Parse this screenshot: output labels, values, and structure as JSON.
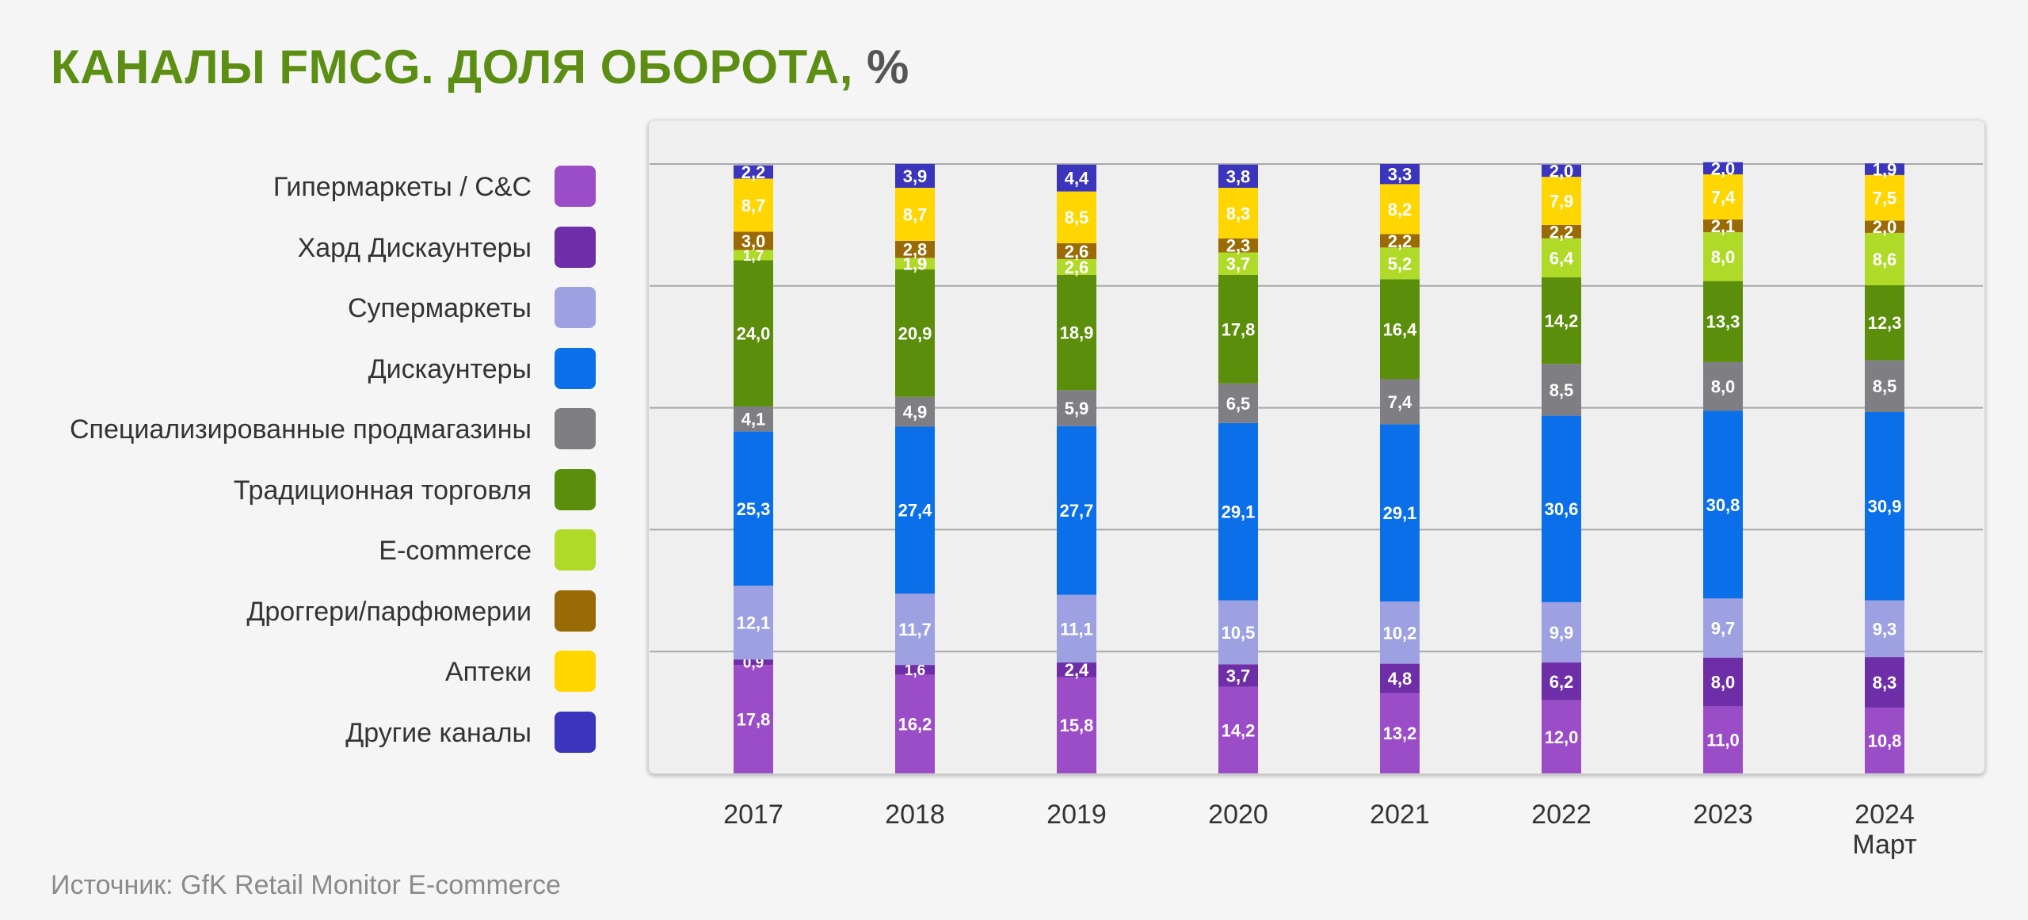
{
  "title": {
    "main": "КАНАЛЫ FMCG. ДОЛЯ ОБОРОТА,",
    "unit": "%"
  },
  "source": "Источник: GfK Retail Monitor E-commerce",
  "legend": [
    {
      "label": "Гипермаркеты / C&C",
      "color": "#9b4dc7"
    },
    {
      "label": "Хард Дискаунтеры",
      "color": "#6e2ea8"
    },
    {
      "label": "Супермаркеты",
      "color": "#9da1e1"
    },
    {
      "label": "Дискаунтеры",
      "color": "#0a6fe8"
    },
    {
      "label": "Специализированные продмагазины",
      "color": "#7f7f83"
    },
    {
      "label": "Традиционная торговля",
      "color": "#5b8e0a"
    },
    {
      "label": "E-commerce",
      "color": "#b0da28"
    },
    {
      "label": "Дроггери/парфюмерии",
      "color": "#9a6b05"
    },
    {
      "label": "Аптеки",
      "color": "#ffd600"
    },
    {
      "label": "Другие каналы",
      "color": "#3a35bc"
    }
  ],
  "chart_data": {
    "type": "bar",
    "stacked": true,
    "categories": [
      "2017",
      "2018",
      "2019",
      "2020",
      "2021",
      "2022",
      "2023",
      "2024\nМарт"
    ],
    "ylim": [
      0,
      100
    ],
    "grid": true,
    "legend_position": "left",
    "series": [
      {
        "name": "Гипермаркеты / C&C",
        "color": "#9b4dc7",
        "values": [
          17.8,
          16.2,
          15.8,
          14.2,
          13.2,
          12.0,
          11.0,
          10.8
        ],
        "labels": [
          "17,8",
          "16,2",
          "15,8",
          "14,2",
          "13,2",
          "12,0",
          "11,0",
          "10,8"
        ]
      },
      {
        "name": "Хард Дискаунтеры",
        "color": "#6e2ea8",
        "values": [
          0.9,
          1.6,
          2.4,
          3.7,
          4.8,
          6.2,
          8.0,
          8.3
        ],
        "labels": [
          "0,9",
          "1,6",
          "2,4",
          "3,7",
          "4,8",
          "6,2",
          "8,0",
          "8,3"
        ]
      },
      {
        "name": "Супермаркеты",
        "color": "#9da1e1",
        "values": [
          12.1,
          11.7,
          11.1,
          10.5,
          10.2,
          9.9,
          9.7,
          9.3
        ],
        "labels": [
          "12,1",
          "11,7",
          "11,1",
          "10,5",
          "10,2",
          "9,9",
          "9,7",
          "9,3"
        ]
      },
      {
        "name": "Дискаунтеры",
        "color": "#0a6fe8",
        "values": [
          25.3,
          27.4,
          27.7,
          29.1,
          29.1,
          30.6,
          30.8,
          30.9
        ],
        "labels": [
          "25,3",
          "27,4",
          "27,7",
          "29,1",
          "29,1",
          "30,6",
          "30,8",
          "30,9"
        ]
      },
      {
        "name": "Специализированные продмагазины",
        "color": "#7f7f83",
        "values": [
          4.1,
          4.9,
          5.9,
          6.5,
          7.4,
          8.5,
          8.0,
          8.5
        ],
        "labels": [
          "4,1",
          "4,9",
          "5,9",
          "6,5",
          "7,4",
          "8,5",
          "8,0",
          "8,5"
        ]
      },
      {
        "name": "Традиционная торговля",
        "color": "#5b8e0a",
        "values": [
          24.0,
          20.9,
          18.9,
          17.8,
          16.4,
          14.2,
          13.3,
          12.3
        ],
        "labels": [
          "24,0",
          "20,9",
          "18,9",
          "17,8",
          "16,4",
          "14,2",
          "13,3",
          "12,3"
        ]
      },
      {
        "name": "E-commerce",
        "color": "#b0da28",
        "values": [
          1.7,
          1.9,
          2.6,
          3.7,
          5.2,
          6.4,
          8.0,
          8.6
        ],
        "labels": [
          "1,7",
          "1,9",
          "2,6",
          "3,7",
          "5,2",
          "6,4",
          "8,0",
          "8,6"
        ]
      },
      {
        "name": "Дроггери/парфюмерии",
        "color": "#9a6b05",
        "values": [
          3.0,
          2.8,
          2.6,
          2.3,
          2.2,
          2.2,
          2.1,
          2.0
        ],
        "labels": [
          "3,0",
          "2,8",
          "2,6",
          "2,3",
          "2,2",
          "2,2",
          "2,1",
          "2,0"
        ]
      },
      {
        "name": "Аптеки",
        "color": "#ffd600",
        "values": [
          8.7,
          8.7,
          8.5,
          8.3,
          8.2,
          7.9,
          7.4,
          7.5
        ],
        "labels": [
          "8,7",
          "8,7",
          "8,5",
          "8,3",
          "8,2",
          "7,9",
          "7,4",
          "7,5"
        ]
      },
      {
        "name": "Другие каналы",
        "color": "#3a35bc",
        "values": [
          2.2,
          3.9,
          4.4,
          3.8,
          3.3,
          2.0,
          2.0,
          1.9
        ],
        "labels": [
          "2,2",
          "3,9",
          "4,4",
          "3,8",
          "3,3",
          "2,0",
          "2,0",
          "1,9"
        ]
      }
    ]
  }
}
